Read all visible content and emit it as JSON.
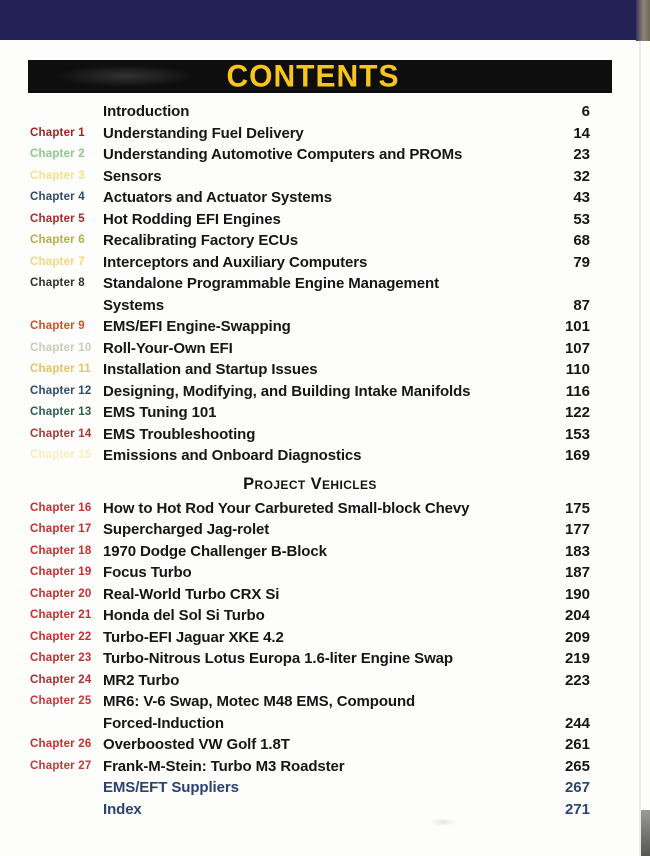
{
  "header": {
    "title": "CONTENTS"
  },
  "colors": {
    "top_band": "#232055",
    "title_bar": "#0e0e0e",
    "title_text": "#f7c51e",
    "body_text": "#161616",
    "navy_text": "#2c4270"
  },
  "toc": {
    "sections": [
      {
        "heading": null,
        "entries": [
          {
            "chapter": "",
            "chapter_color": "",
            "title": "Introduction",
            "title2": "",
            "page": "6",
            "title_color": "#161616",
            "page_color": "#161616"
          },
          {
            "chapter": "Chapter 1",
            "chapter_color": "#9b2420",
            "title": "Understanding Fuel Delivery",
            "title2": "",
            "page": "14",
            "title_color": "#161616",
            "page_color": "#161616"
          },
          {
            "chapter": "Chapter 2",
            "chapter_color": "#8cc98c",
            "title": "Understanding Automotive Computers and PROMs",
            "title2": "",
            "page": "23",
            "title_color": "#161616",
            "page_color": "#161616"
          },
          {
            "chapter": "Chapter 3",
            "chapter_color": "#f0e28e",
            "title": "Sensors",
            "title2": "",
            "page": "32",
            "title_color": "#161616",
            "page_color": "#161616"
          },
          {
            "chapter": "Chapter 4",
            "chapter_color": "#2d4a68",
            "title": "Actuators and Actuator Systems",
            "title2": "",
            "page": "43",
            "title_color": "#161616",
            "page_color": "#161616"
          },
          {
            "chapter": "Chapter 5",
            "chapter_color": "#a32b2b",
            "title": "Hot Rodding EFI Engines",
            "title2": "",
            "page": "53",
            "title_color": "#161616",
            "page_color": "#161616"
          },
          {
            "chapter": "Chapter 6",
            "chapter_color": "#b3ae4a",
            "title": "Recalibrating Factory ECUs",
            "title2": "",
            "page": "68",
            "title_color": "#161616",
            "page_color": "#161616"
          },
          {
            "chapter": "Chapter 7",
            "chapter_color": "#f3d77e",
            "title": "Interceptors and Auxiliary Computers",
            "title2": "",
            "page": "79",
            "title_color": "#161616",
            "page_color": "#161616"
          },
          {
            "chapter": "Chapter 8",
            "chapter_color": "#2e2e2e",
            "title": "Standalone Programmable Engine Management",
            "title2": "Systems",
            "page": "87",
            "title_color": "#161616",
            "page_color": "#161616"
          },
          {
            "chapter": "Chapter 9",
            "chapter_color": "#c75327",
            "title": "EMS/EFI Engine-Swapping",
            "title2": "",
            "page": "101",
            "title_color": "#161616",
            "page_color": "#161616"
          },
          {
            "chapter": "Chapter 10",
            "chapter_color": "#c9cdbb",
            "title": "Roll-Your-Own EFI",
            "title2": "",
            "page": "107",
            "title_color": "#161616",
            "page_color": "#161616"
          },
          {
            "chapter": "Chapter 11",
            "chapter_color": "#e3c368",
            "title": "Installation and Startup Issues",
            "title2": "",
            "page": "110",
            "title_color": "#161616",
            "page_color": "#161616"
          },
          {
            "chapter": "Chapter 12",
            "chapter_color": "#2d4a6b",
            "title": "Designing, Modifying, and Building Intake Manifolds",
            "title2": "",
            "page": "116",
            "title_color": "#161616",
            "page_color": "#161616"
          },
          {
            "chapter": "Chapter 13",
            "chapter_color": "#2d5c4d",
            "title": "EMS Tuning 101",
            "title2": "",
            "page": "122",
            "title_color": "#161616",
            "page_color": "#161616"
          },
          {
            "chapter": "Chapter 14",
            "chapter_color": "#a33a35",
            "title": "EMS Troubleshooting",
            "title2": "",
            "page": "153",
            "title_color": "#161616",
            "page_color": "#161616"
          },
          {
            "chapter": "Chapter 15",
            "chapter_color": "#f6efbc",
            "title": "Emissions and Onboard Diagnostics",
            "title2": "",
            "page": "169",
            "title_color": "#161616",
            "page_color": "#161616"
          }
        ]
      },
      {
        "heading": "Project Vehicles",
        "entries": [
          {
            "chapter": "Chapter 16",
            "chapter_color": "#c62f2f",
            "title": "How to Hot Rod Your Carbureted Small-block Chevy",
            "title2": "",
            "page": "175",
            "title_color": "#161616",
            "page_color": "#161616"
          },
          {
            "chapter": "Chapter 17",
            "chapter_color": "#c62f2f",
            "title": "Supercharged Jag-rolet",
            "title2": "",
            "page": "177",
            "title_color": "#161616",
            "page_color": "#161616"
          },
          {
            "chapter": "Chapter 18",
            "chapter_color": "#c62f2f",
            "title": "1970 Dodge Challenger B-Block",
            "title2": "",
            "page": "183",
            "title_color": "#161616",
            "page_color": "#161616"
          },
          {
            "chapter": "Chapter 19",
            "chapter_color": "#c62f2f",
            "title": "Focus Turbo",
            "title2": "",
            "page": "187",
            "title_color": "#161616",
            "page_color": "#161616"
          },
          {
            "chapter": "Chapter 20",
            "chapter_color": "#c62f2f",
            "title": "Real-World Turbo CRX Si",
            "title2": "",
            "page": "190",
            "title_color": "#161616",
            "page_color": "#161616"
          },
          {
            "chapter": "Chapter 21",
            "chapter_color": "#c62f2f",
            "title": "Honda del Sol Si Turbo",
            "title2": "",
            "page": "204",
            "title_color": "#161616",
            "page_color": "#161616"
          },
          {
            "chapter": "Chapter 22",
            "chapter_color": "#c62f2f",
            "title": "Turbo-EFI Jaguar XKE 4.2",
            "title2": "",
            "page": "209",
            "title_color": "#161616",
            "page_color": "#161616"
          },
          {
            "chapter": "Chapter 23",
            "chapter_color": "#c62f2f",
            "title": "Turbo-Nitrous Lotus Europa 1.6-liter Engine Swap",
            "title2": "",
            "page": "219",
            "title_color": "#161616",
            "page_color": "#161616"
          },
          {
            "chapter": "Chapter 24",
            "chapter_color": "#a83030",
            "title": "MR2 Turbo",
            "title2": "",
            "page": "223",
            "title_color": "#161616",
            "page_color": "#161616"
          },
          {
            "chapter": "Chapter 25",
            "chapter_color": "#c03a3a",
            "title": "MR6: V-6 Swap, Motec M48 EMS, Compound",
            "title2": "Forced-Induction",
            "page": "244",
            "title_color": "#161616",
            "page_color": "#161616"
          },
          {
            "chapter": "Chapter 26",
            "chapter_color": "#c62f2f",
            "title": "Overboosted VW Golf 1.8T",
            "title2": "",
            "page": "261",
            "title_color": "#161616",
            "page_color": "#161616"
          },
          {
            "chapter": "Chapter 27",
            "chapter_color": "#c03a3a",
            "title": "Frank-M-Stein: Turbo M3 Roadster",
            "title2": "",
            "page": "265",
            "title_color": "#161616",
            "page_color": "#161616"
          },
          {
            "chapter": "",
            "chapter_color": "",
            "title": "EMS/EFT Suppliers",
            "title2": "",
            "page": "267",
            "title_color": "#2c4270",
            "page_color": "#2c4270"
          },
          {
            "chapter": "",
            "chapter_color": "",
            "title": "Index",
            "title2": "",
            "page": "271",
            "title_color": "#2c4270",
            "page_color": "#2c4270"
          }
        ]
      }
    ]
  }
}
